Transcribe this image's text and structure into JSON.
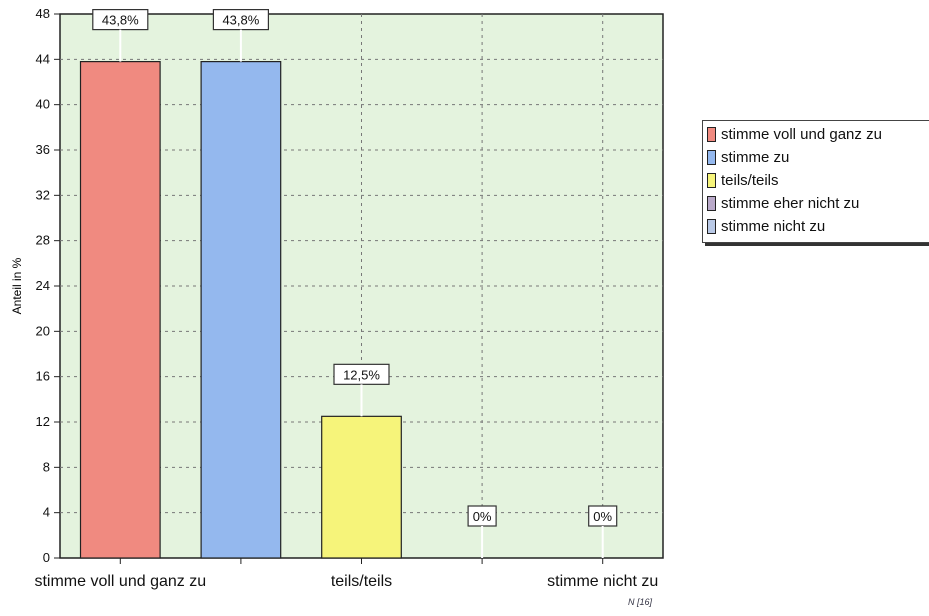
{
  "chart_data": {
    "type": "bar",
    "ylabel": "Anteil in %",
    "ylim": [
      0,
      48
    ],
    "ytick_step": 4,
    "grid": true,
    "legend_position": "right",
    "categories": [
      "stimme voll und ganz zu",
      "stimme zu",
      "teils/teils",
      "stimme eher nicht zu",
      "stimme nicht zu"
    ],
    "x_tick_labels": [
      "stimme voll und ganz zu",
      "teils/teils",
      "stimme nicht zu"
    ],
    "values": [
      43.8,
      43.8,
      12.5,
      0,
      0
    ],
    "data_labels": [
      "43,8%",
      "43,8%",
      "12,5%",
      "0%",
      "0%"
    ],
    "colors": [
      "#f08a80",
      "#94b8ee",
      "#f6f47a",
      "#b9a9c9",
      "#b9c9e6"
    ],
    "plot_background": "#e4f3de",
    "legend": [
      {
        "label": "stimme voll und ganz zu",
        "color": "#f08a80"
      },
      {
        "label": "stimme zu",
        "color": "#94b8ee"
      },
      {
        "label": "teils/teils",
        "color": "#f6f47a"
      },
      {
        "label": "stimme eher nicht zu",
        "color": "#b9a9c9"
      },
      {
        "label": "stimme nicht zu",
        "color": "#b9c9e6"
      }
    ],
    "footnote": "N [16]"
  }
}
